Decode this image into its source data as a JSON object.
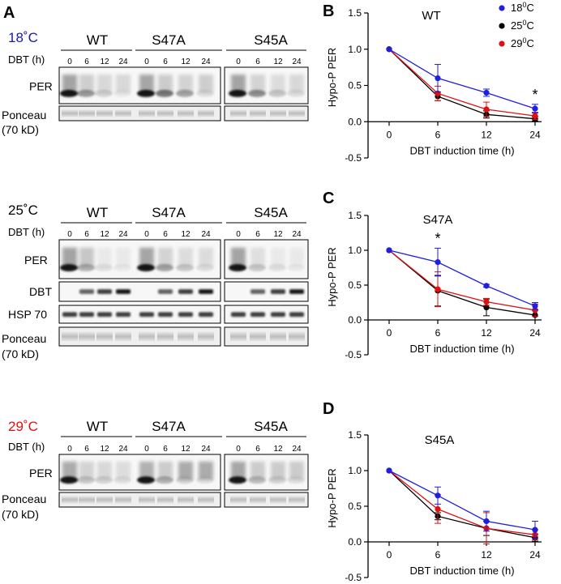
{
  "panel_letters": {
    "a": "A",
    "b": "B",
    "c": "C",
    "d": "D"
  },
  "blot_labels": {
    "dbt_h": "DBT (h)",
    "per": "PER",
    "dbt": "DBT",
    "hsp70": "HSP 70",
    "ponceau": "Ponceau",
    "ponceau_kd": "(70 kD)",
    "timepoints": [
      "0",
      "6",
      "12",
      "24"
    ],
    "strains": [
      "WT",
      "S47A",
      "S45A"
    ]
  },
  "temperatures": [
    {
      "label": "18˚C",
      "color": "#1a1aa6"
    },
    {
      "label": "25˚C",
      "color": "#000000"
    },
    {
      "label": "29˚C",
      "color": "#e01010"
    }
  ],
  "legend": [
    {
      "label": "18",
      "sup": "0",
      "unit": "C",
      "color": "#1f1fe0"
    },
    {
      "label": "25",
      "sup": "0",
      "unit": "C",
      "color": "#000000"
    },
    {
      "label": "29",
      "sup": "0",
      "unit": "C",
      "color": "#e01010"
    }
  ],
  "chart_data": [
    {
      "type": "line",
      "panel": "B",
      "title": "WT",
      "xlabel": "DBT induction time (h)",
      "ylabel": "Hypo-P PER",
      "x": [
        0,
        6,
        12,
        24
      ],
      "x_ticks": [
        "0",
        "6",
        "12",
        "24"
      ],
      "y_ticks": [
        "-0.5",
        "0.0",
        "0.5",
        "1.0",
        "1.5"
      ],
      "ylim": [
        -0.5,
        1.5
      ],
      "series": [
        {
          "name": "18°C",
          "values": [
            1.0,
            0.6,
            0.4,
            0.18
          ],
          "errors": [
            0,
            0.19,
            0.05,
            0.06
          ]
        },
        {
          "name": "25°C",
          "values": [
            1.0,
            0.35,
            0.1,
            0.04
          ],
          "errors": [
            0,
            0.06,
            0.05,
            0.03
          ]
        },
        {
          "name": "29°C",
          "values": [
            1.0,
            0.39,
            0.17,
            0.08
          ],
          "errors": [
            0,
            0.1,
            0.1,
            0.05
          ]
        }
      ],
      "significance": [
        {
          "x": 24,
          "label": "*"
        }
      ]
    },
    {
      "type": "line",
      "panel": "C",
      "title": "S47A",
      "xlabel": "DBT induction time (h)",
      "ylabel": "Hypo-P PER",
      "x": [
        0,
        6,
        12,
        24
      ],
      "x_ticks": [
        "0",
        "6",
        "12",
        "24"
      ],
      "y_ticks": [
        "-0.5",
        "0.0",
        "0.5",
        "1.0",
        "1.5"
      ],
      "ylim": [
        -0.5,
        1.5
      ],
      "series": [
        {
          "name": "18°C",
          "values": [
            1.0,
            0.83,
            0.49,
            0.2
          ],
          "errors": [
            0,
            0.2,
            0.02,
            0.05
          ]
        },
        {
          "name": "25°C",
          "values": [
            1.0,
            0.42,
            0.18,
            0.07
          ],
          "errors": [
            0,
            0.22,
            0.12,
            0.07
          ]
        },
        {
          "name": "29°C",
          "values": [
            1.0,
            0.44,
            0.26,
            0.14
          ],
          "errors": [
            0,
            0.25,
            0.05,
            0.09
          ]
        }
      ],
      "significance": [
        {
          "x": 6,
          "label": "*"
        }
      ]
    },
    {
      "type": "line",
      "panel": "D",
      "title": "S45A",
      "xlabel": "DBT induction time (h)",
      "ylabel": "Hypo-P PER",
      "x": [
        0,
        6,
        12,
        24
      ],
      "x_ticks": [
        "0",
        "6",
        "12",
        "24"
      ],
      "y_ticks": [
        "-0.5",
        "0.0",
        "0.5",
        "1.0",
        "1.5"
      ],
      "ylim": [
        -0.5,
        1.5
      ],
      "series": [
        {
          "name": "18°C",
          "values": [
            1.0,
            0.65,
            0.29,
            0.17
          ],
          "errors": [
            0,
            0.12,
            0.14,
            0.12
          ]
        },
        {
          "name": "25°C",
          "values": [
            1.0,
            0.36,
            0.19,
            0.06
          ],
          "errors": [
            0,
            0.05,
            0.1,
            0.05
          ]
        },
        {
          "name": "29°C",
          "values": [
            1.0,
            0.46,
            0.19,
            0.1
          ],
          "errors": [
            0,
            0.2,
            0.22,
            0.07
          ]
        }
      ],
      "significance": []
    }
  ]
}
